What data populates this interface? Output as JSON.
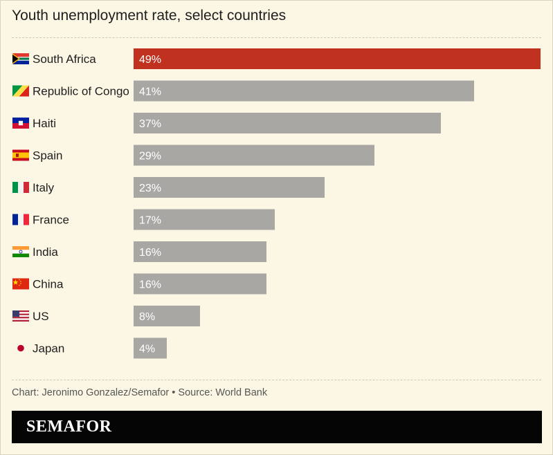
{
  "title": "Youth unemployment rate, select countries",
  "footer": {
    "credit": "Chart: Jeronimo Gonzalez/Semafor",
    "separator": "•",
    "source": "Source: World Bank"
  },
  "brand": {
    "name": "SEMAFOR"
  },
  "colors": {
    "highlight": "#c0321f",
    "bar": "#a9a7a3",
    "background": "#fbf7e4"
  },
  "chart_data": {
    "type": "bar",
    "orientation": "horizontal",
    "title": "Youth unemployment rate, select countries",
    "xlabel": "",
    "ylabel": "",
    "unit": "%",
    "xlim": [
      0,
      49
    ],
    "grid": false,
    "highlight_index": 0,
    "categories": [
      "South Africa",
      "Republic of Congo",
      "Haiti",
      "Spain",
      "Italy",
      "France",
      "India",
      "China",
      "US",
      "Japan"
    ],
    "values": [
      49,
      41,
      37,
      29,
      23,
      17,
      16,
      16,
      8,
      4
    ],
    "value_labels": [
      "49%",
      "41%",
      "37%",
      "29%",
      "23%",
      "17%",
      "16%",
      "16%",
      "8%",
      "4%"
    ],
    "flags": [
      "south-africa-flag-icon",
      "republic-of-congo-flag-icon",
      "haiti-flag-icon",
      "spain-flag-icon",
      "italy-flag-icon",
      "france-flag-icon",
      "india-flag-icon",
      "china-flag-icon",
      "us-flag-icon",
      "japan-flag-icon"
    ]
  }
}
